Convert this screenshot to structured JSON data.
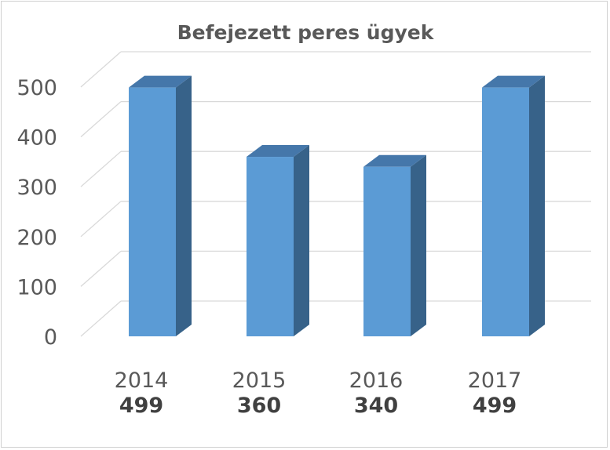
{
  "chart_data": {
    "type": "bar",
    "title": "Befejezett peres ügyek",
    "categories": [
      "2014",
      "2015",
      "2016",
      "2017"
    ],
    "values": [
      499,
      360,
      340,
      499
    ],
    "value_labels": [
      "499",
      "360",
      "340",
      "499"
    ],
    "ylim": [
      0,
      500
    ],
    "yticks": [
      "0",
      "100",
      "200",
      "300",
      "400",
      "500"
    ],
    "grid": true,
    "style": "3d-column",
    "colors": {
      "front": "#5B9BD5",
      "side": "#376289",
      "top": "#4577AA",
      "grid": "#D9D9D9",
      "text": "#595959"
    }
  }
}
